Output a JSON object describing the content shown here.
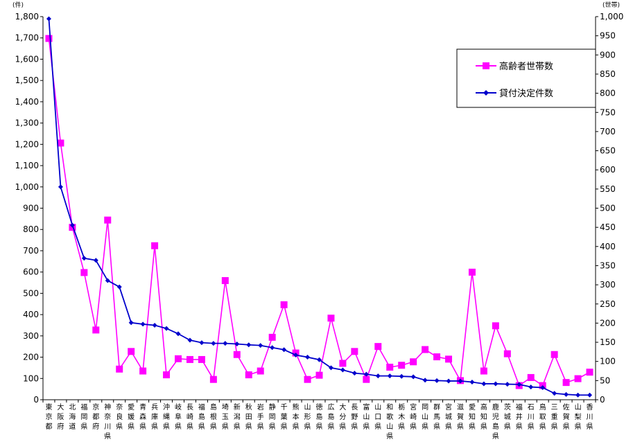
{
  "chart_data": {
    "type": "line",
    "left_axis": {
      "unit": "(件)",
      "ylim": [
        0,
        1800
      ],
      "ticks": [
        "0",
        "100",
        "200",
        "300",
        "400",
        "500",
        "600",
        "700",
        "800",
        "900",
        "1,000",
        "1,100",
        "1,200",
        "1,300",
        "1,400",
        "1,500",
        "1,600",
        "1,700",
        "1,800"
      ]
    },
    "right_axis": {
      "unit": "(世帯)",
      "ylim": [
        0,
        1000
      ],
      "ticks": [
        "0",
        "50",
        "100",
        "150",
        "200",
        "250",
        "300",
        "350",
        "400",
        "450",
        "500",
        "550",
        "600",
        "650",
        "700",
        "750",
        "800",
        "850",
        "900",
        "950",
        "1,000"
      ]
    },
    "categories": [
      [
        "東",
        "京",
        "都"
      ],
      [
        "大",
        "阪",
        "府"
      ],
      [
        "北",
        "海",
        "道"
      ],
      [
        "福",
        "岡",
        "県"
      ],
      [
        "京",
        "都",
        "府"
      ],
      [
        "神",
        "奈",
        "川",
        "県"
      ],
      [
        "奈",
        "良",
        "県"
      ],
      [
        "愛",
        "媛",
        "県"
      ],
      [
        "青",
        "森",
        "県"
      ],
      [
        "兵",
        "庫",
        "県"
      ],
      [
        "沖",
        "縄",
        "県"
      ],
      [
        "岐",
        "阜",
        "県"
      ],
      [
        "長",
        "崎",
        "県"
      ],
      [
        "福",
        "島",
        "県"
      ],
      [
        "島",
        "根",
        "県"
      ],
      [
        "埼",
        "玉",
        "県"
      ],
      [
        "新",
        "潟",
        "県"
      ],
      [
        "秋",
        "田",
        "県"
      ],
      [
        "岩",
        "手",
        "県"
      ],
      [
        "静",
        "岡",
        "県"
      ],
      [
        "千",
        "葉",
        "県"
      ],
      [
        "熊",
        "本",
        "県"
      ],
      [
        "山",
        "形",
        "県"
      ],
      [
        "徳",
        "島",
        "県"
      ],
      [
        "広",
        "島",
        "県"
      ],
      [
        "大",
        "分",
        "県"
      ],
      [
        "長",
        "野",
        "県"
      ],
      [
        "富",
        "山",
        "県"
      ],
      [
        "山",
        "口",
        "県"
      ],
      [
        "和",
        "歌",
        "山",
        "県"
      ],
      [
        "栃",
        "木",
        "県"
      ],
      [
        "宮",
        "崎",
        "県"
      ],
      [
        "岡",
        "山",
        "県"
      ],
      [
        "群",
        "馬",
        "県"
      ],
      [
        "宮",
        "城",
        "県"
      ],
      [
        "滋",
        "賀",
        "県"
      ],
      [
        "愛",
        "知",
        "県"
      ],
      [
        "高",
        "知",
        "県"
      ],
      [
        "鹿",
        "児",
        "島",
        "県"
      ],
      [
        "茨",
        "城",
        "県"
      ],
      [
        "福",
        "井",
        "県"
      ],
      [
        "石",
        "川",
        "県"
      ],
      [
        "鳥",
        "取",
        "県"
      ],
      [
        "三",
        "重",
        "県"
      ],
      [
        "佐",
        "賀",
        "県"
      ],
      [
        "山",
        "梨",
        "県"
      ],
      [
        "香",
        "川",
        "県"
      ]
    ],
    "series": [
      {
        "name": "高齢者世帯数",
        "axis": "right",
        "color": "#ff00ff",
        "marker": "square",
        "values": [
          943,
          670,
          450,
          332,
          182,
          469,
          80,
          126,
          75,
          402,
          65,
          107,
          105,
          105,
          53,
          311,
          118,
          65,
          75,
          163,
          248,
          122,
          53,
          64,
          213,
          95,
          126,
          53,
          139,
          85,
          90,
          99,
          131,
          112,
          106,
          50,
          333,
          75,
          193,
          120,
          37,
          58,
          37,
          118,
          45,
          55,
          72
        ]
      },
      {
        "name": "貸付決定件数",
        "axis": "left",
        "color": "#0000cc",
        "marker": "diamond",
        "values": [
          1790,
          1000,
          820,
          665,
          655,
          560,
          530,
          362,
          355,
          350,
          335,
          310,
          280,
          268,
          265,
          265,
          262,
          258,
          255,
          245,
          235,
          210,
          200,
          188,
          150,
          140,
          125,
          120,
          112,
          112,
          110,
          108,
          92,
          90,
          88,
          88,
          83,
          75,
          75,
          73,
          72,
          60,
          57,
          30,
          25,
          22,
          22
        ]
      }
    ],
    "legend_position": "top-right",
    "grid": false
  }
}
